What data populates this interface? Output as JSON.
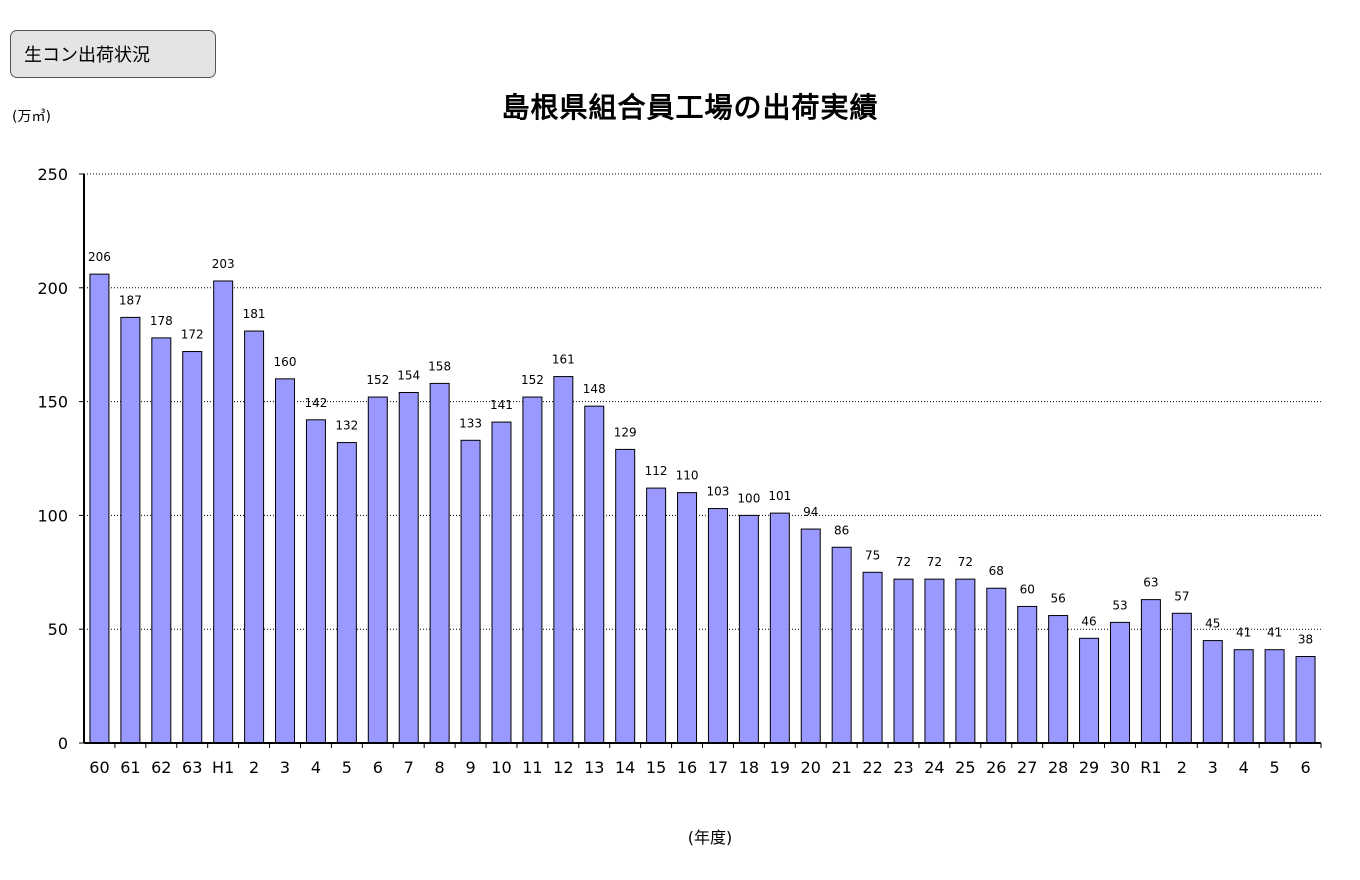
{
  "header": {
    "badge_label": "生コン出荷状況"
  },
  "chart_data": {
    "type": "bar",
    "title": "島根県組合員工場の出荷実績",
    "ylabel": "(万㎥)",
    "xlabel": "(年度)",
    "ylim": [
      0,
      250
    ],
    "yticks": [
      0,
      50,
      100,
      150,
      200,
      250
    ],
    "grid": true,
    "bar_color": "#9999ff",
    "categories": [
      "60",
      "61",
      "62",
      "63",
      "H1",
      "2",
      "3",
      "4",
      "5",
      "6",
      "7",
      "8",
      "9",
      "10",
      "11",
      "12",
      "13",
      "14",
      "15",
      "16",
      "17",
      "18",
      "19",
      "20",
      "21",
      "22",
      "23",
      "24",
      "25",
      "26",
      "27",
      "28",
      "29",
      "30",
      "R1",
      "2",
      "3",
      "4",
      "5",
      "6"
    ],
    "values": [
      206,
      187,
      178,
      172,
      203,
      181,
      160,
      142,
      132,
      152,
      154,
      158,
      133,
      141,
      152,
      161,
      148,
      129,
      112,
      110,
      103,
      100,
      101,
      94,
      86,
      75,
      72,
      72,
      72,
      68,
      60,
      56,
      46,
      53,
      63,
      57,
      45,
      41,
      41,
      38
    ]
  }
}
